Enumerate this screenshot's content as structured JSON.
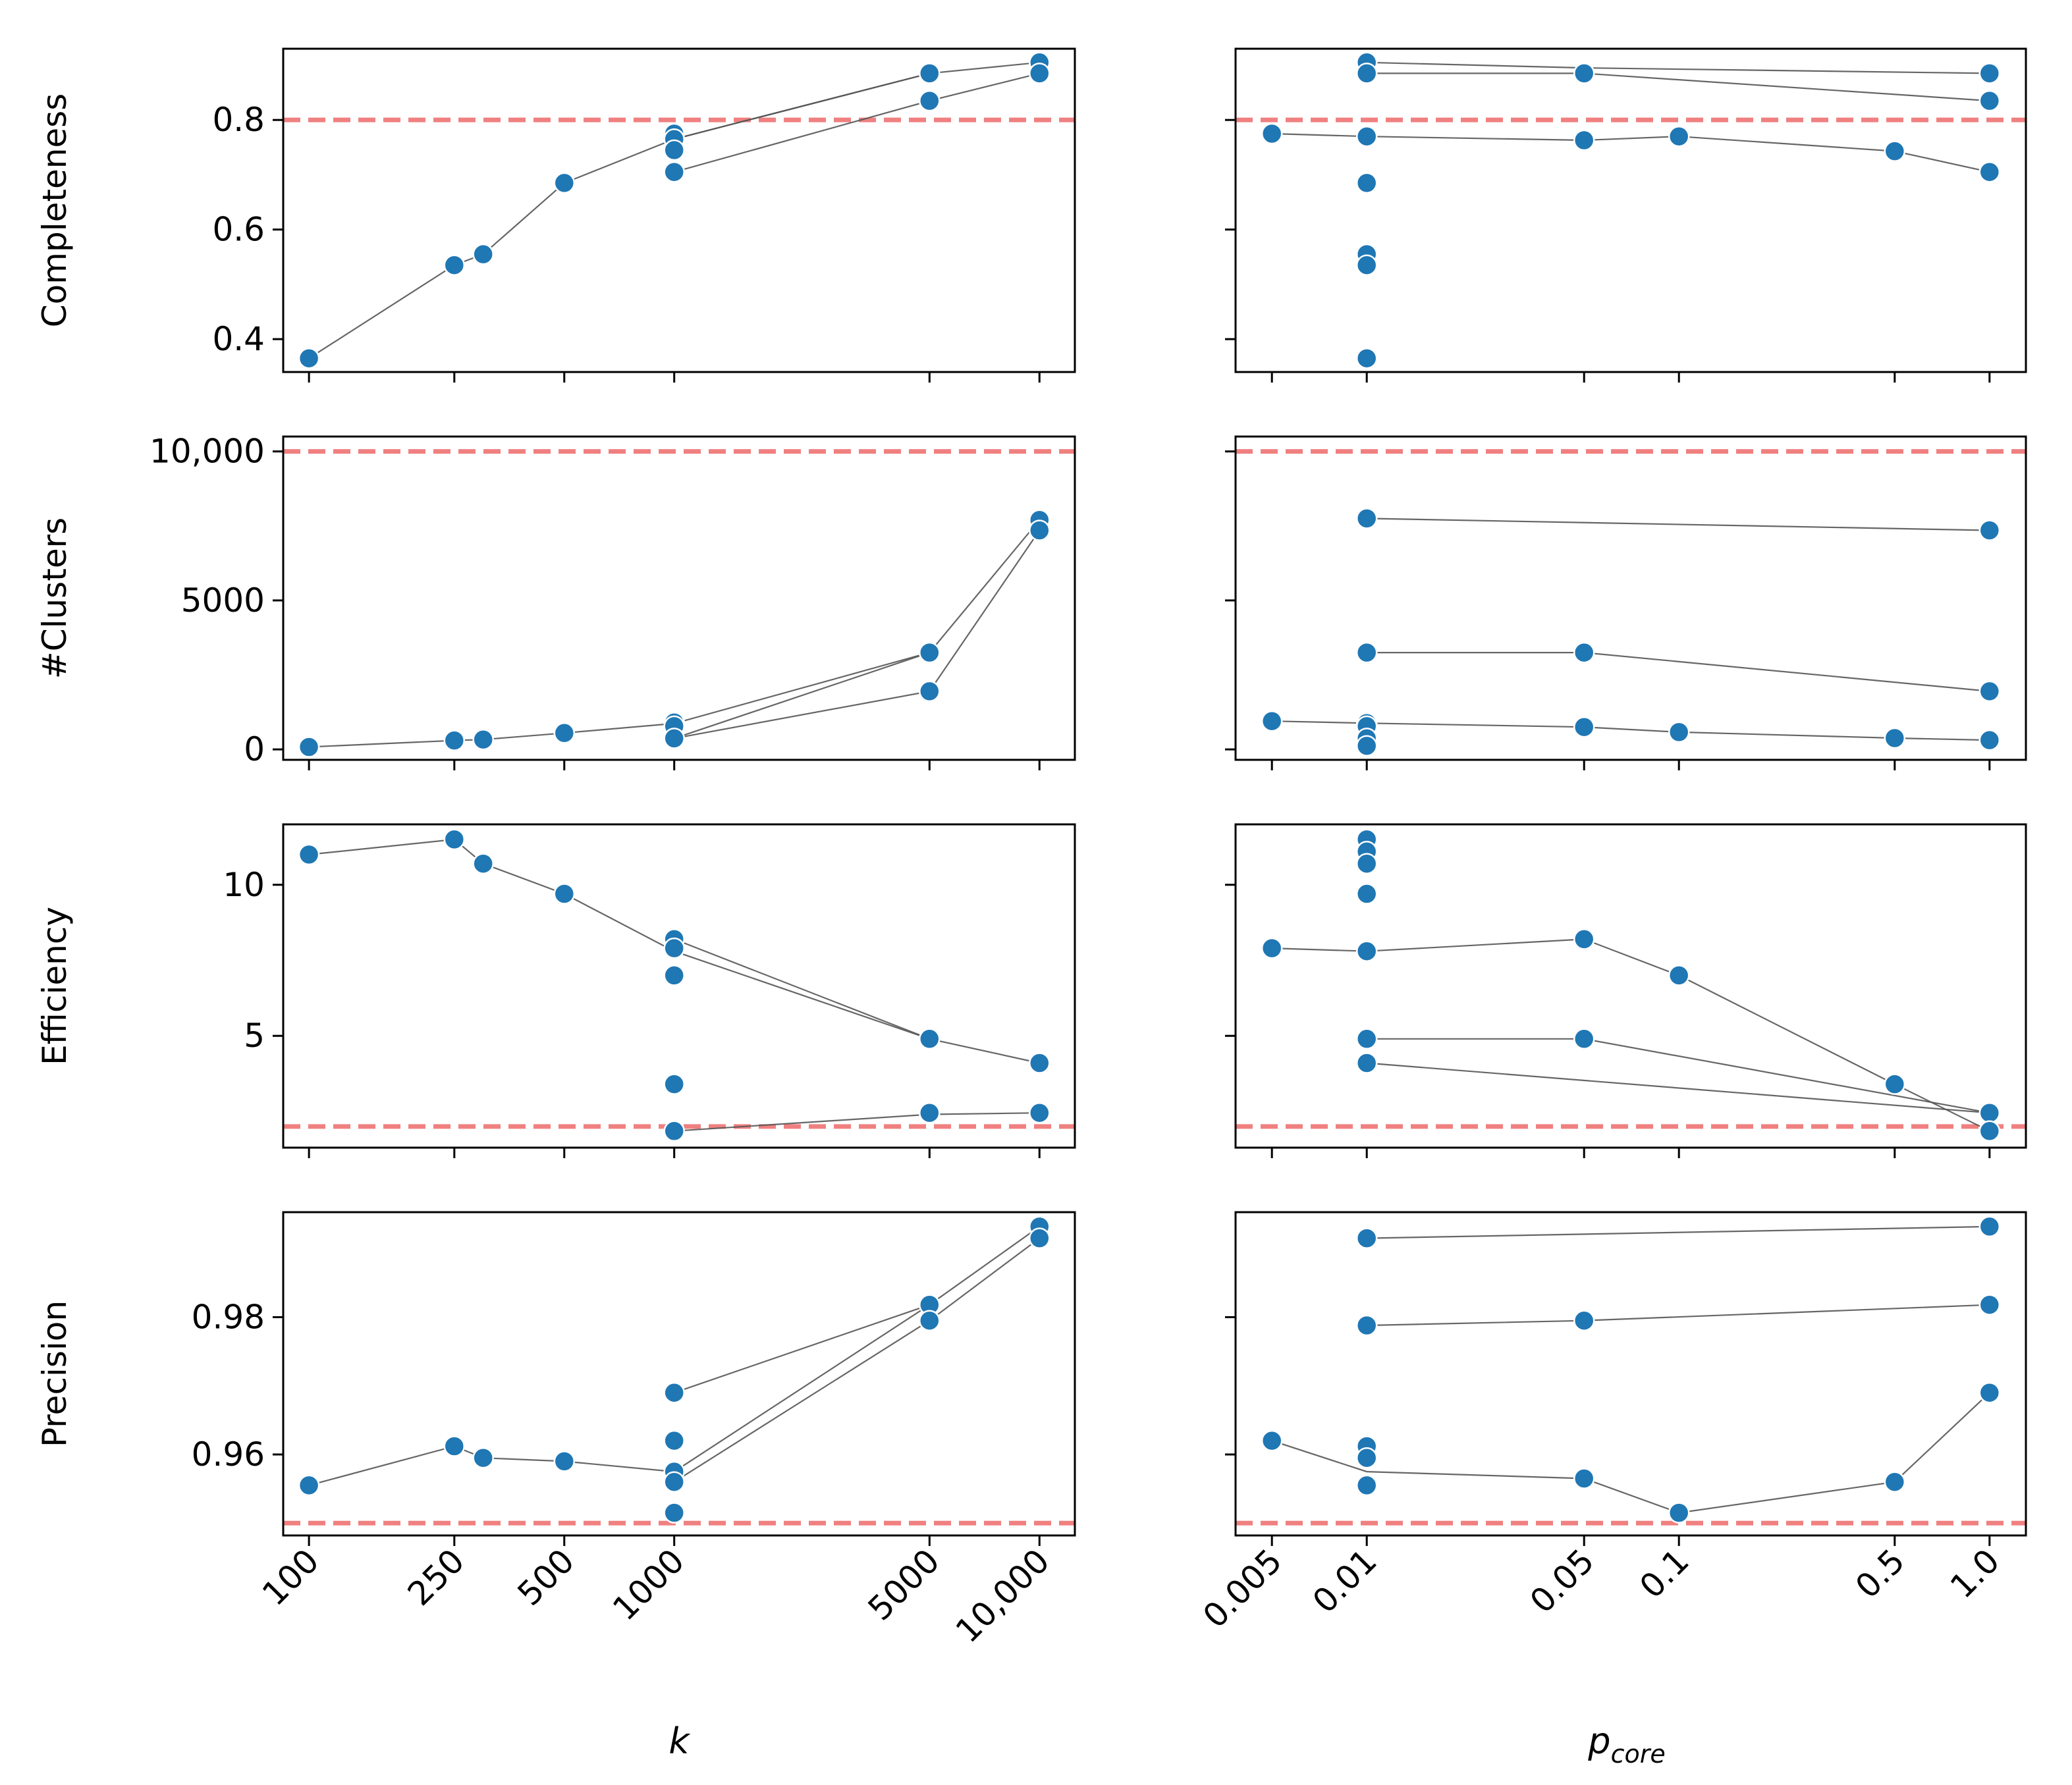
{
  "colors": {
    "marker": "#1f77b4",
    "marker_edge": "#ffffff",
    "connector": "#555555",
    "threshold": "#f08080",
    "axis": "#000000"
  },
  "chart_data": {
    "type": "scatter",
    "x_axes": {
      "left": {
        "label": "k",
        "scale": "log",
        "xlim": [
          85,
          12500
        ],
        "ticks": [
          100,
          250,
          500,
          1000,
          5000,
          10000
        ],
        "tick_labels": [
          "100",
          "250",
          "500",
          "1000",
          "5000",
          "10,000"
        ]
      },
      "right": {
        "label": "p",
        "label_subscript": "core",
        "scale": "categorical",
        "categories": [
          0.005,
          0.01,
          0.05,
          0.1,
          0.5,
          1.0
        ],
        "tick_labels": [
          "0.005",
          "0.01",
          "0.05",
          "0.1",
          "0.5",
          "1.0"
        ]
      }
    },
    "rows": [
      {
        "metric": "Completeness",
        "ylim": [
          0.34,
          0.93
        ],
        "yticks": [
          0.4,
          0.6,
          0.8
        ],
        "ytick_labels": [
          "0.4",
          "0.6",
          "0.8"
        ],
        "threshold": 0.8,
        "left": {
          "points": [
            [
              100,
              0.365
            ],
            [
              250,
              0.535
            ],
            [
              300,
              0.555
            ],
            [
              500,
              0.685
            ],
            [
              1000,
              0.775
            ],
            [
              1000,
              0.765
            ],
            [
              1000,
              0.745
            ],
            [
              1000,
              0.705
            ],
            [
              5000,
              0.885
            ],
            [
              5000,
              0.835
            ],
            [
              10000,
              0.905
            ],
            [
              10000,
              0.885
            ]
          ],
          "lines": [
            [
              [
                100,
                0.365
              ],
              [
                250,
                0.535
              ],
              [
                300,
                0.555
              ],
              [
                500,
                0.685
              ],
              [
                1000,
                0.765
              ],
              [
                5000,
                0.885
              ],
              [
                10000,
                0.905
              ]
            ],
            [
              [
                1000,
                0.765
              ],
              [
                5000,
                0.885
              ]
            ],
            [
              [
                1000,
                0.705
              ],
              [
                5000,
                0.835
              ],
              [
                10000,
                0.885
              ]
            ]
          ]
        },
        "right": {
          "points": [
            [
              0.005,
              0.775
            ],
            [
              0.01,
              0.905
            ],
            [
              0.01,
              0.885
            ],
            [
              0.01,
              0.77
            ],
            [
              0.01,
              0.685
            ],
            [
              0.01,
              0.555
            ],
            [
              0.01,
              0.535
            ],
            [
              0.01,
              0.365
            ],
            [
              0.05,
              0.885
            ],
            [
              0.05,
              0.763
            ],
            [
              0.1,
              0.77
            ],
            [
              0.5,
              0.743
            ],
            [
              1.0,
              0.885
            ],
            [
              1.0,
              0.835
            ],
            [
              1.0,
              0.705
            ]
          ],
          "lines": [
            [
              [
                0.01,
                0.905
              ],
              [
                0.05,
                0.895
              ],
              [
                1.0,
                0.885
              ]
            ],
            [
              [
                0.01,
                0.885
              ],
              [
                0.05,
                0.885
              ],
              [
                1.0,
                0.835
              ]
            ],
            [
              [
                0.005,
                0.775
              ],
              [
                0.01,
                0.77
              ],
              [
                0.05,
                0.763
              ],
              [
                0.1,
                0.77
              ],
              [
                0.5,
                0.743
              ],
              [
                1.0,
                0.705
              ]
            ]
          ]
        }
      },
      {
        "metric": "#Clusters",
        "ylim": [
          -350,
          10500
        ],
        "yticks": [
          0,
          5000,
          10000
        ],
        "ytick_labels": [
          "0",
          "5000",
          "10,000"
        ],
        "threshold": 10000,
        "left": {
          "points": [
            [
              100,
              80
            ],
            [
              250,
              300
            ],
            [
              300,
              330
            ],
            [
              500,
              550
            ],
            [
              1000,
              900
            ],
            [
              1000,
              780
            ],
            [
              1000,
              370
            ],
            [
              5000,
              3250
            ],
            [
              5000,
              1950
            ],
            [
              10000,
              7700
            ],
            [
              10000,
              7350
            ]
          ],
          "lines": [
            [
              [
                100,
                80
              ],
              [
                250,
                300
              ],
              [
                300,
                330
              ],
              [
                500,
                550
              ],
              [
                1000,
                870
              ],
              [
                5000,
                3250
              ],
              [
                10000,
                7700
              ]
            ],
            [
              [
                1000,
                370
              ],
              [
                5000,
                3250
              ]
            ],
            [
              [
                1000,
                370
              ],
              [
                5000,
                1950
              ],
              [
                10000,
                7350
              ]
            ]
          ]
        },
        "right": {
          "points": [
            [
              0.005,
              950
            ],
            [
              0.01,
              7750
            ],
            [
              0.01,
              3250
            ],
            [
              0.01,
              880
            ],
            [
              0.01,
              780
            ],
            [
              0.01,
              370
            ],
            [
              0.01,
              120
            ],
            [
              0.05,
              3250
            ],
            [
              0.05,
              750
            ],
            [
              0.1,
              580
            ],
            [
              0.5,
              380
            ],
            [
              1.0,
              7350
            ],
            [
              1.0,
              1950
            ],
            [
              1.0,
              310
            ]
          ],
          "lines": [
            [
              [
                0.01,
                7750
              ],
              [
                1.0,
                7350
              ]
            ],
            [
              [
                0.01,
                3250
              ],
              [
                0.05,
                3250
              ],
              [
                1.0,
                1950
              ]
            ],
            [
              [
                0.005,
                950
              ],
              [
                0.01,
                880
              ],
              [
                0.05,
                750
              ],
              [
                0.1,
                580
              ],
              [
                0.5,
                380
              ],
              [
                1.0,
                310
              ]
            ]
          ]
        }
      },
      {
        "metric": "Efficiency",
        "ylim": [
          1.3,
          12.0
        ],
        "yticks": [
          5,
          10
        ],
        "ytick_labels": [
          "5",
          "10"
        ],
        "threshold": 2,
        "left": {
          "points": [
            [
              100,
              11.0
            ],
            [
              250,
              11.5
            ],
            [
              300,
              10.7
            ],
            [
              500,
              9.7
            ],
            [
              1000,
              8.2
            ],
            [
              1000,
              7.9
            ],
            [
              1000,
              7.0
            ],
            [
              1000,
              3.4
            ],
            [
              1000,
              1.85
            ],
            [
              5000,
              4.9
            ],
            [
              5000,
              2.45
            ],
            [
              10000,
              4.1
            ],
            [
              10000,
              2.45
            ]
          ],
          "lines": [
            [
              [
                100,
                11.0
              ],
              [
                250,
                11.5
              ],
              [
                300,
                10.7
              ],
              [
                500,
                9.7
              ],
              [
                1000,
                7.8
              ],
              [
                5000,
                4.9
              ],
              [
                10000,
                4.1
              ]
            ],
            [
              [
                1000,
                8.2
              ],
              [
                5000,
                4.9
              ]
            ],
            [
              [
                1000,
                1.85
              ],
              [
                5000,
                2.4
              ],
              [
                10000,
                2.45
              ]
            ]
          ]
        },
        "right": {
          "points": [
            [
              0.005,
              7.9
            ],
            [
              0.01,
              11.5
            ],
            [
              0.01,
              11.1
            ],
            [
              0.01,
              10.7
            ],
            [
              0.01,
              9.7
            ],
            [
              0.01,
              7.8
            ],
            [
              0.01,
              4.9
            ],
            [
              0.01,
              4.1
            ],
            [
              0.05,
              8.2
            ],
            [
              0.05,
              4.9
            ],
            [
              0.1,
              7.0
            ],
            [
              0.5,
              3.4
            ],
            [
              1.0,
              2.45
            ],
            [
              1.0,
              1.85
            ]
          ],
          "lines": [
            [
              [
                0.005,
                7.9
              ],
              [
                0.01,
                7.8
              ],
              [
                0.05,
                8.2
              ],
              [
                0.1,
                7.0
              ],
              [
                0.5,
                3.4
              ],
              [
                1.0,
                1.85
              ]
            ],
            [
              [
                0.01,
                4.9
              ],
              [
                0.05,
                4.9
              ],
              [
                1.0,
                2.45
              ]
            ],
            [
              [
                0.01,
                4.1
              ],
              [
                1.0,
                2.45
              ]
            ]
          ]
        }
      },
      {
        "metric": "Precision",
        "ylim": [
          0.9482,
          0.9953
        ],
        "yticks": [
          0.96,
          0.98
        ],
        "ytick_labels": [
          "0.96",
          "0.98"
        ],
        "threshold": 0.95,
        "left": {
          "points": [
            [
              100,
              0.9555
            ],
            [
              250,
              0.9612
            ],
            [
              300,
              0.9595
            ],
            [
              500,
              0.959
            ],
            [
              1000,
              0.969
            ],
            [
              1000,
              0.962
            ],
            [
              1000,
              0.9575
            ],
            [
              1000,
              0.956
            ],
            [
              1000,
              0.9515
            ],
            [
              5000,
              0.9818
            ],
            [
              5000,
              0.9795
            ],
            [
              10000,
              0.9932
            ],
            [
              10000,
              0.9915
            ]
          ],
          "lines": [
            [
              [
                100,
                0.9555
              ],
              [
                250,
                0.9612
              ],
              [
                300,
                0.9595
              ],
              [
                500,
                0.959
              ],
              [
                1000,
                0.9575
              ],
              [
                5000,
                0.9818
              ],
              [
                10000,
                0.9932
              ]
            ],
            [
              [
                1000,
                0.969
              ],
              [
                5000,
                0.9818
              ]
            ],
            [
              [
                1000,
                0.956
              ],
              [
                5000,
                0.9795
              ],
              [
                10000,
                0.9915
              ]
            ]
          ]
        },
        "right": {
          "points": [
            [
              0.005,
              0.962
            ],
            [
              0.01,
              0.9915
            ],
            [
              0.01,
              0.9788
            ],
            [
              0.01,
              0.9612
            ],
            [
              0.01,
              0.9595
            ],
            [
              0.01,
              0.9555
            ],
            [
              0.05,
              0.9795
            ],
            [
              0.05,
              0.9565
            ],
            [
              0.1,
              0.9515
            ],
            [
              0.5,
              0.956
            ],
            [
              1.0,
              0.9932
            ],
            [
              1.0,
              0.9818
            ],
            [
              1.0,
              0.969
            ]
          ],
          "lines": [
            [
              [
                0.01,
                0.9915
              ],
              [
                1.0,
                0.9932
              ]
            ],
            [
              [
                0.01,
                0.9788
              ],
              [
                0.05,
                0.9795
              ],
              [
                1.0,
                0.9818
              ]
            ],
            [
              [
                0.005,
                0.962
              ],
              [
                0.01,
                0.9575
              ],
              [
                0.05,
                0.9565
              ],
              [
                0.1,
                0.9515
              ],
              [
                0.5,
                0.956
              ],
              [
                1.0,
                0.969
              ]
            ]
          ]
        }
      }
    ]
  }
}
